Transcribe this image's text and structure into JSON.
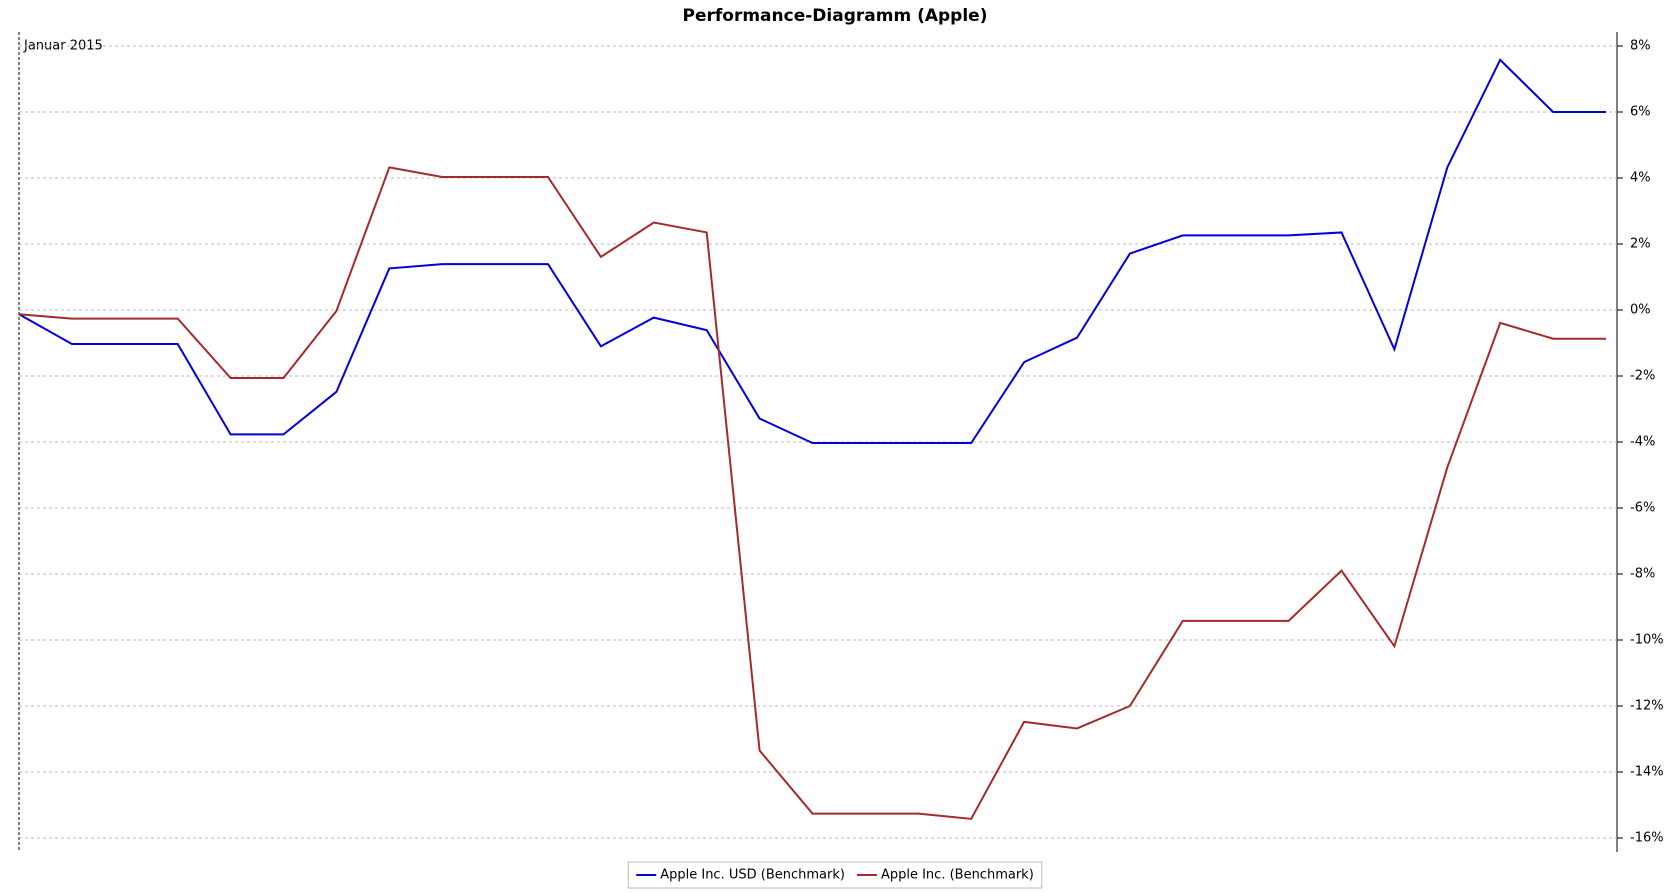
{
  "chart_data": {
    "type": "line",
    "title": "Performance-Diagramm (Apple)",
    "annotation": "Januar 2015",
    "series": [
      {
        "name": "Apple Inc. USD (Benchmark)",
        "color": "#0000dd",
        "values": [
          -0.13,
          -1.03,
          -1.03,
          -1.03,
          -3.77,
          -3.77,
          -2.48,
          1.26,
          1.39,
          1.39,
          1.39,
          -1.1,
          -0.23,
          -0.61,
          -3.29,
          -4.03,
          -4.03,
          -4.03,
          -4.03,
          -1.58,
          -0.84,
          1.71,
          2.26,
          2.26,
          2.26,
          2.35,
          -1.19,
          4.32,
          7.58,
          6.0,
          6.0
        ]
      },
      {
        "name": "Apple Inc. (Benchmark)",
        "color": "#a52a2a",
        "values": [
          -0.13,
          -0.26,
          -0.26,
          -0.26,
          -2.06,
          -2.06,
          -0.03,
          4.32,
          4.03,
          4.03,
          4.03,
          1.61,
          2.65,
          2.35,
          -13.35,
          -15.26,
          -15.26,
          -15.26,
          -15.42,
          -12.48,
          -12.68,
          -12.0,
          -9.42,
          -9.42,
          -9.42,
          -7.9,
          -10.19,
          -4.77,
          -0.39,
          -0.87,
          -0.87
        ]
      }
    ],
    "ylim": [
      -16,
      8
    ],
    "yticks": [
      {
        "value": 8,
        "label": "8%"
      },
      {
        "value": 6,
        "label": "6%"
      },
      {
        "value": 4,
        "label": "4%"
      },
      {
        "value": 2,
        "label": "2%"
      },
      {
        "value": 0,
        "label": "0%"
      },
      {
        "value": -2,
        "label": "-2%"
      },
      {
        "value": -4,
        "label": "-4%"
      },
      {
        "value": -6,
        "label": "-6%"
      },
      {
        "value": -8,
        "label": "-8%"
      },
      {
        "value": -10,
        "label": "-10%"
      },
      {
        "value": -12,
        "label": "-12%"
      },
      {
        "value": -14,
        "label": "-14%"
      },
      {
        "value": -16,
        "label": "-16%"
      }
    ],
    "grid": true,
    "legend": "bottom"
  }
}
